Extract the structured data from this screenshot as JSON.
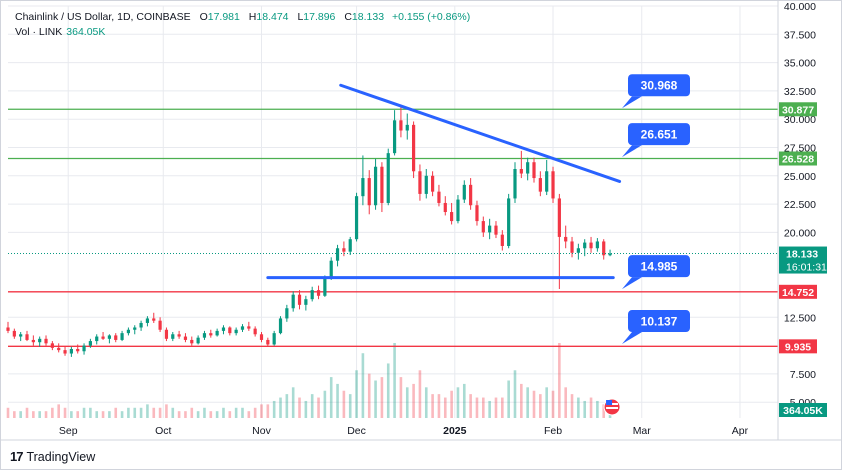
{
  "legend": {
    "symbol": "Chainlink / US Dollar, 1D, COINBASE",
    "o_label": "O",
    "o": "17.981",
    "h_label": "H",
    "h": "18.474",
    "l_label": "L",
    "l": "17.896",
    "c_label": "C",
    "c": "18.133",
    "change": "+0.155 (+0.86%)",
    "vol_label": "Vol · LINK",
    "vol": "364.05K"
  },
  "brand": {
    "name": "TradingView",
    "icon": "tradingview-logo-icon"
  },
  "colors": {
    "up": "#089981",
    "down": "#f23645",
    "trendline": "#2962ff",
    "resistance": "#4caf50",
    "support": "#f23645",
    "callout": "#2962ff",
    "grid": "#e8eaef"
  },
  "chart_data": {
    "type": "candlestick",
    "y_axis": {
      "ticks": [
        "40.000",
        "37.500",
        "35.000",
        "32.500",
        "30.000",
        "27.500",
        "25.000",
        "22.500",
        "20.000",
        "12.500",
        "7.500",
        "5.000"
      ],
      "ylim": [
        4.5,
        40.0
      ]
    },
    "x_axis": {
      "ticks": [
        {
          "label": "Sep",
          "date": "2024-09-01"
        },
        {
          "label": "Oct",
          "date": "2024-10-01"
        },
        {
          "label": "Nov",
          "date": "2024-11-01"
        },
        {
          "label": "Dec",
          "date": "2024-12-01"
        },
        {
          "label": "2025",
          "date": "2025-01-01"
        },
        {
          "label": "Feb",
          "date": "2025-02-01"
        },
        {
          "label": "Mar",
          "date": "2025-03-01"
        },
        {
          "label": "Apr",
          "date": "2025-04-01"
        }
      ],
      "range": [
        "2024-08-13",
        "2025-04-13"
      ]
    },
    "horizontal_levels": [
      {
        "label": "30.877",
        "value": 30.877,
        "color": "#4caf50"
      },
      {
        "label": "26.528",
        "value": 26.528,
        "color": "#4caf50"
      },
      {
        "label": "14.752",
        "value": 14.752,
        "color": "#f23645"
      },
      {
        "label": "9.935",
        "value": 9.935,
        "color": "#f23645"
      }
    ],
    "callouts": [
      {
        "label": "30.968",
        "value": 30.968
      },
      {
        "label": "26.651",
        "value": 26.651
      },
      {
        "label": "14.985",
        "value": 14.985
      },
      {
        "label": "10.137",
        "value": 10.137
      }
    ],
    "trendlines": [
      {
        "from": {
          "date": "2024-11-26",
          "value": 33.0
        },
        "to": {
          "date": "2025-02-22",
          "value": 24.5
        },
        "color": "#2962ff"
      },
      {
        "from": {
          "date": "2024-11-03",
          "value": 16.0
        },
        "to": {
          "date": "2025-02-20",
          "value": 16.0
        },
        "color": "#2962ff"
      }
    ],
    "last_price": {
      "label": "18.133",
      "countdown": "16:01:31",
      "value": 18.133
    },
    "last_volume": {
      "label": "364.05K"
    },
    "volume_axis_top": 12.5,
    "volume_axis_bottom": 4.5,
    "candles_note": "daily",
    "candles": [
      {
        "date": "2024-08-13",
        "o": 11.6,
        "h": 12.1,
        "l": 11.1,
        "c": 11.3
      },
      {
        "date": "2024-08-15",
        "o": 11.3,
        "h": 11.5,
        "l": 10.6,
        "c": 10.8
      },
      {
        "date": "2024-08-17",
        "o": 10.8,
        "h": 11.2,
        "l": 10.4,
        "c": 11.0
      },
      {
        "date": "2024-08-19",
        "o": 11.0,
        "h": 11.3,
        "l": 10.4,
        "c": 10.5
      },
      {
        "date": "2024-08-21",
        "o": 10.5,
        "h": 10.9,
        "l": 10.0,
        "c": 10.3
      },
      {
        "date": "2024-08-23",
        "o": 10.3,
        "h": 10.8,
        "l": 9.9,
        "c": 10.6
      },
      {
        "date": "2024-08-25",
        "o": 10.6,
        "h": 10.9,
        "l": 10.0,
        "c": 10.2
      },
      {
        "date": "2024-08-27",
        "o": 10.2,
        "h": 10.4,
        "l": 9.6,
        "c": 9.8
      },
      {
        "date": "2024-08-29",
        "o": 9.8,
        "h": 10.2,
        "l": 9.4,
        "c": 9.6
      },
      {
        "date": "2024-08-31",
        "o": 9.6,
        "h": 9.9,
        "l": 9.1,
        "c": 9.3
      },
      {
        "date": "2024-09-02",
        "o": 9.3,
        "h": 9.9,
        "l": 9.0,
        "c": 9.7
      },
      {
        "date": "2024-09-04",
        "o": 9.7,
        "h": 10.1,
        "l": 9.3,
        "c": 9.5
      },
      {
        "date": "2024-09-06",
        "o": 9.5,
        "h": 10.2,
        "l": 9.2,
        "c": 10.0
      },
      {
        "date": "2024-09-08",
        "o": 10.0,
        "h": 10.6,
        "l": 9.8,
        "c": 10.4
      },
      {
        "date": "2024-09-10",
        "o": 10.4,
        "h": 11.0,
        "l": 10.1,
        "c": 10.8
      },
      {
        "date": "2024-09-12",
        "o": 10.8,
        "h": 11.2,
        "l": 10.5,
        "c": 10.6
      },
      {
        "date": "2024-09-14",
        "o": 10.6,
        "h": 11.0,
        "l": 10.2,
        "c": 10.9
      },
      {
        "date": "2024-09-16",
        "o": 10.9,
        "h": 11.1,
        "l": 10.3,
        "c": 10.5
      },
      {
        "date": "2024-09-18",
        "o": 10.5,
        "h": 11.3,
        "l": 10.4,
        "c": 11.1
      },
      {
        "date": "2024-09-20",
        "o": 11.1,
        "h": 11.6,
        "l": 10.9,
        "c": 11.4
      },
      {
        "date": "2024-09-22",
        "o": 11.4,
        "h": 11.8,
        "l": 11.0,
        "c": 11.6
      },
      {
        "date": "2024-09-24",
        "o": 11.6,
        "h": 12.2,
        "l": 11.3,
        "c": 12.0
      },
      {
        "date": "2024-09-26",
        "o": 12.0,
        "h": 12.6,
        "l": 11.7,
        "c": 12.4
      },
      {
        "date": "2024-09-28",
        "o": 12.4,
        "h": 12.9,
        "l": 12.0,
        "c": 12.2
      },
      {
        "date": "2024-09-30",
        "o": 12.2,
        "h": 12.5,
        "l": 11.2,
        "c": 11.4
      },
      {
        "date": "2024-10-02",
        "o": 11.4,
        "h": 11.6,
        "l": 10.4,
        "c": 10.6
      },
      {
        "date": "2024-10-04",
        "o": 10.6,
        "h": 11.2,
        "l": 10.4,
        "c": 11.0
      },
      {
        "date": "2024-10-06",
        "o": 11.0,
        "h": 11.3,
        "l": 10.6,
        "c": 10.8
      },
      {
        "date": "2024-10-08",
        "o": 10.8,
        "h": 11.1,
        "l": 10.3,
        "c": 10.5
      },
      {
        "date": "2024-10-10",
        "o": 10.5,
        "h": 10.8,
        "l": 10.0,
        "c": 10.2
      },
      {
        "date": "2024-10-12",
        "o": 10.2,
        "h": 10.9,
        "l": 10.1,
        "c": 10.7
      },
      {
        "date": "2024-10-14",
        "o": 10.7,
        "h": 11.3,
        "l": 10.5,
        "c": 11.1
      },
      {
        "date": "2024-10-16",
        "o": 11.1,
        "h": 11.4,
        "l": 10.7,
        "c": 10.9
      },
      {
        "date": "2024-10-18",
        "o": 10.9,
        "h": 11.5,
        "l": 10.8,
        "c": 11.3
      },
      {
        "date": "2024-10-20",
        "o": 11.3,
        "h": 11.8,
        "l": 11.0,
        "c": 11.6
      },
      {
        "date": "2024-10-22",
        "o": 11.6,
        "h": 11.7,
        "l": 10.9,
        "c": 11.1
      },
      {
        "date": "2024-10-24",
        "o": 11.1,
        "h": 11.6,
        "l": 10.9,
        "c": 11.4
      },
      {
        "date": "2024-10-26",
        "o": 11.4,
        "h": 11.9,
        "l": 11.2,
        "c": 11.7
      },
      {
        "date": "2024-10-28",
        "o": 11.7,
        "h": 12.1,
        "l": 11.3,
        "c": 11.5
      },
      {
        "date": "2024-10-30",
        "o": 11.5,
        "h": 11.7,
        "l": 10.8,
        "c": 11.0
      },
      {
        "date": "2024-11-01",
        "o": 11.0,
        "h": 11.2,
        "l": 10.3,
        "c": 10.5
      },
      {
        "date": "2024-11-03",
        "o": 10.5,
        "h": 10.7,
        "l": 9.9,
        "c": 10.1
      },
      {
        "date": "2024-11-05",
        "o": 10.1,
        "h": 11.3,
        "l": 10.0,
        "c": 11.1
      },
      {
        "date": "2024-11-07",
        "o": 11.1,
        "h": 12.6,
        "l": 11.0,
        "c": 12.4
      },
      {
        "date": "2024-11-09",
        "o": 12.4,
        "h": 13.6,
        "l": 12.1,
        "c": 13.3
      },
      {
        "date": "2024-11-11",
        "o": 13.3,
        "h": 14.8,
        "l": 13.0,
        "c": 14.5
      },
      {
        "date": "2024-11-13",
        "o": 14.5,
        "h": 14.9,
        "l": 13.2,
        "c": 13.6
      },
      {
        "date": "2024-11-15",
        "o": 13.6,
        "h": 14.4,
        "l": 13.1,
        "c": 14.1
      },
      {
        "date": "2024-11-17",
        "o": 14.1,
        "h": 15.2,
        "l": 13.9,
        "c": 14.9
      },
      {
        "date": "2024-11-19",
        "o": 14.9,
        "h": 15.3,
        "l": 14.1,
        "c": 14.4
      },
      {
        "date": "2024-11-21",
        "o": 14.4,
        "h": 16.2,
        "l": 14.3,
        "c": 16.0
      },
      {
        "date": "2024-11-23",
        "o": 16.0,
        "h": 17.8,
        "l": 15.8,
        "c": 17.5
      },
      {
        "date": "2024-11-25",
        "o": 17.5,
        "h": 18.9,
        "l": 17.0,
        "c": 18.6
      },
      {
        "date": "2024-11-27",
        "o": 18.6,
        "h": 19.2,
        "l": 17.9,
        "c": 18.3
      },
      {
        "date": "2024-11-29",
        "o": 18.3,
        "h": 19.6,
        "l": 18.0,
        "c": 19.4
      },
      {
        "date": "2024-12-01",
        "o": 19.4,
        "h": 23.5,
        "l": 19.2,
        "c": 23.2
      },
      {
        "date": "2024-12-03",
        "o": 23.2,
        "h": 26.8,
        "l": 22.4,
        "c": 24.8
      },
      {
        "date": "2024-12-05",
        "o": 24.8,
        "h": 25.5,
        "l": 21.6,
        "c": 22.4
      },
      {
        "date": "2024-12-07",
        "o": 22.4,
        "h": 26.5,
        "l": 22.0,
        "c": 25.8
      },
      {
        "date": "2024-12-09",
        "o": 25.8,
        "h": 26.2,
        "l": 21.8,
        "c": 22.6
      },
      {
        "date": "2024-12-11",
        "o": 22.6,
        "h": 27.4,
        "l": 22.4,
        "c": 27.0
      },
      {
        "date": "2024-12-13",
        "o": 27.0,
        "h": 30.8,
        "l": 26.8,
        "c": 29.9
      },
      {
        "date": "2024-12-15",
        "o": 29.9,
        "h": 31.3,
        "l": 28.4,
        "c": 29.0
      },
      {
        "date": "2024-12-17",
        "o": 29.0,
        "h": 30.5,
        "l": 28.2,
        "c": 29.5
      },
      {
        "date": "2024-12-19",
        "o": 29.5,
        "h": 29.8,
        "l": 24.8,
        "c": 25.4
      },
      {
        "date": "2024-12-21",
        "o": 25.4,
        "h": 26.0,
        "l": 22.8,
        "c": 23.4
      },
      {
        "date": "2024-12-23",
        "o": 23.4,
        "h": 25.6,
        "l": 23.0,
        "c": 25.0
      },
      {
        "date": "2024-12-25",
        "o": 25.0,
        "h": 25.4,
        "l": 23.2,
        "c": 23.6
      },
      {
        "date": "2024-12-27",
        "o": 23.6,
        "h": 24.2,
        "l": 22.3,
        "c": 22.6
      },
      {
        "date": "2024-12-29",
        "o": 22.6,
        "h": 23.2,
        "l": 21.5,
        "c": 21.8
      },
      {
        "date": "2024-12-31",
        "o": 21.8,
        "h": 22.6,
        "l": 20.7,
        "c": 21.0
      },
      {
        "date": "2025-01-02",
        "o": 21.0,
        "h": 23.3,
        "l": 20.8,
        "c": 22.9
      },
      {
        "date": "2025-01-04",
        "o": 22.9,
        "h": 24.6,
        "l": 22.6,
        "c": 24.2
      },
      {
        "date": "2025-01-06",
        "o": 24.2,
        "h": 24.8,
        "l": 22.0,
        "c": 22.4
      },
      {
        "date": "2025-01-08",
        "o": 22.4,
        "h": 22.8,
        "l": 20.6,
        "c": 21.0
      },
      {
        "date": "2025-01-10",
        "o": 21.0,
        "h": 21.4,
        "l": 19.6,
        "c": 20.0
      },
      {
        "date": "2025-01-12",
        "o": 20.0,
        "h": 21.2,
        "l": 19.4,
        "c": 20.6
      },
      {
        "date": "2025-01-14",
        "o": 20.6,
        "h": 21.0,
        "l": 19.5,
        "c": 19.8
      },
      {
        "date": "2025-01-16",
        "o": 19.8,
        "h": 20.2,
        "l": 18.4,
        "c": 18.8
      },
      {
        "date": "2025-01-18",
        "o": 18.8,
        "h": 23.4,
        "l": 18.6,
        "c": 23.0
      },
      {
        "date": "2025-01-20",
        "o": 23.0,
        "h": 26.2,
        "l": 22.6,
        "c": 25.6
      },
      {
        "date": "2025-01-22",
        "o": 25.6,
        "h": 27.2,
        "l": 24.8,
        "c": 25.2
      },
      {
        "date": "2025-01-24",
        "o": 25.2,
        "h": 26.6,
        "l": 24.6,
        "c": 26.2
      },
      {
        "date": "2025-01-26",
        "o": 26.2,
        "h": 26.6,
        "l": 24.4,
        "c": 24.8
      },
      {
        "date": "2025-01-28",
        "o": 24.8,
        "h": 25.4,
        "l": 23.2,
        "c": 23.6
      },
      {
        "date": "2025-01-30",
        "o": 23.6,
        "h": 26.4,
        "l": 23.3,
        "c": 25.4
      },
      {
        "date": "2025-02-01",
        "o": 25.4,
        "h": 25.8,
        "l": 22.6,
        "c": 23.0
      },
      {
        "date": "2025-02-03",
        "o": 23.0,
        "h": 23.4,
        "l": 15.0,
        "c": 19.6
      },
      {
        "date": "2025-02-05",
        "o": 19.6,
        "h": 20.6,
        "l": 18.6,
        "c": 19.2
      },
      {
        "date": "2025-02-07",
        "o": 19.2,
        "h": 19.6,
        "l": 17.8,
        "c": 18.2
      },
      {
        "date": "2025-02-09",
        "o": 18.2,
        "h": 19.0,
        "l": 17.6,
        "c": 18.6
      },
      {
        "date": "2025-02-11",
        "o": 18.6,
        "h": 19.4,
        "l": 17.9,
        "c": 19.1
      },
      {
        "date": "2025-02-13",
        "o": 19.1,
        "h": 19.6,
        "l": 18.2,
        "c": 18.6
      },
      {
        "date": "2025-02-15",
        "o": 18.6,
        "h": 19.5,
        "l": 18.3,
        "c": 19.2
      },
      {
        "date": "2025-02-17",
        "o": 19.2,
        "h": 19.4,
        "l": 17.6,
        "c": 17.98
      },
      {
        "date": "2025-02-19",
        "o": 17.98,
        "h": 18.474,
        "l": 17.896,
        "c": 18.133
      }
    ],
    "volume": [
      3,
      2,
      2,
      3,
      2,
      2,
      2,
      3,
      4,
      3,
      2,
      2,
      3,
      3,
      2,
      2,
      2,
      3,
      2,
      3,
      3,
      3,
      4,
      3,
      3,
      4,
      3,
      2,
      2,
      3,
      2,
      3,
      2,
      2,
      3,
      2,
      3,
      3,
      2,
      3,
      4,
      4,
      5,
      6,
      7,
      9,
      6,
      5,
      7,
      6,
      8,
      12,
      10,
      8,
      7,
      14,
      19,
      13,
      11,
      12,
      16,
      22,
      12,
      9,
      10,
      14,
      9,
      7,
      7,
      6,
      8,
      9,
      10,
      7,
      6,
      6,
      5,
      6,
      6,
      11,
      14,
      10,
      9,
      8,
      7,
      9,
      8,
      22,
      9,
      7,
      6,
      5,
      6,
      5,
      4,
      3
    ]
  }
}
